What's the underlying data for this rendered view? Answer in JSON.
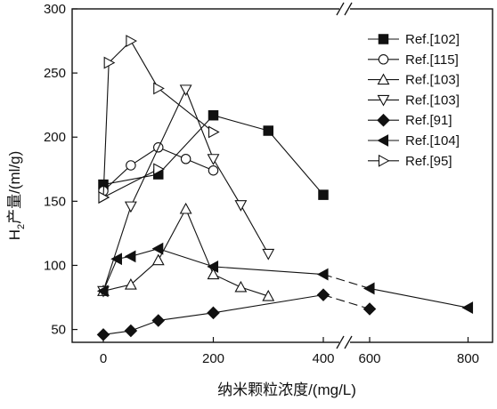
{
  "chart_data": {
    "type": "line",
    "xlabel": "纳米颗粒浓度/(mg/L)",
    "ylabel_main": "H",
    "ylabel_sub": "2",
    "ylabel_rest": "产量/(ml/g)",
    "y_ticks": [
      50,
      100,
      150,
      200,
      250,
      300
    ],
    "ylim": [
      40,
      300
    ],
    "x_ticks": [
      "0",
      "200",
      "400",
      "600",
      "800"
    ],
    "x_tick_values": [
      0,
      200,
      400,
      600,
      800
    ],
    "x_axis_break": {
      "between": [
        400,
        600
      ],
      "style": "double-slash on top and bottom axis"
    },
    "grid": false,
    "legend_position": "top-right",
    "series": [
      {
        "name": "Ref.[102]",
        "marker": "square-filled",
        "x": [
          0,
          100,
          200,
          300,
          400
        ],
        "y": [
          163,
          171,
          217,
          205,
          155
        ]
      },
      {
        "name": "Ref.[115]",
        "marker": "circle-open",
        "x": [
          0,
          50,
          100,
          150,
          200
        ],
        "y": [
          158,
          178,
          192,
          183,
          174
        ]
      },
      {
        "name": "Ref.[103]",
        "marker": "triangle-up-open",
        "x": [
          0,
          50,
          100,
          150,
          200,
          250,
          300
        ],
        "y": [
          80,
          85,
          104,
          144,
          93,
          83,
          76
        ]
      },
      {
        "name": "Ref.[103]",
        "marker": "triangle-down-open",
        "x": [
          0,
          50,
          150,
          200,
          250,
          300
        ],
        "y": [
          80,
          146,
          237,
          183,
          147,
          109
        ]
      },
      {
        "name": "Ref.[91]",
        "marker": "diamond-filled",
        "x": [
          0,
          50,
          100,
          200,
          400,
          600
        ],
        "y": [
          46,
          49,
          57,
          63,
          77,
          66
        ],
        "dashed_segments": [
          4
        ]
      },
      {
        "name": "Ref.[104]",
        "marker": "triangle-left-filled",
        "x": [
          0,
          25,
          50,
          100,
          200,
          400,
          600,
          800
        ],
        "y": [
          80,
          105,
          107,
          113,
          99,
          93,
          82,
          67
        ],
        "dashed_segments": [
          5
        ]
      },
      {
        "name": "Ref.[95]",
        "marker": "triangle-right-open",
        "x": [
          0,
          10,
          50,
          100,
          200
        ],
        "y": [
          153,
          258,
          275,
          238,
          204
        ]
      },
      {
        "name": "Ref.[95]",
        "hide_legend": true,
        "marker": "triangle-right-open",
        "x": [
          0,
          100
        ],
        "y": [
          153,
          175
        ]
      }
    ]
  }
}
